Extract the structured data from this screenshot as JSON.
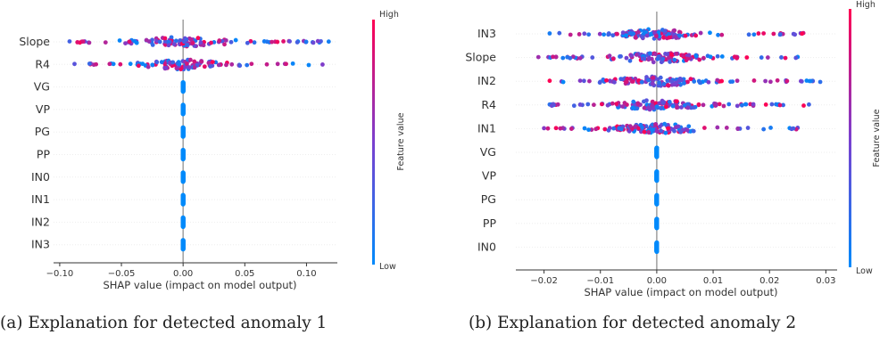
{
  "chart_data": [
    {
      "type": "scatter",
      "subtype": "shap-beeswarm",
      "caption": "(a) Explanation for detected anomaly 1",
      "xlabel": "SHAP value (impact on model output)",
      "xlim": [
        -0.105,
        0.125
      ],
      "xticks": [
        -0.1,
        -0.05,
        0.0,
        0.05,
        0.1
      ],
      "xtick_labels": [
        "−0.10",
        "−0.05",
        "0.00",
        "0.05",
        "0.10"
      ],
      "colorbar": {
        "label": "Feature value",
        "high": "High",
        "low": "Low"
      },
      "features": [
        {
          "name": "Slope",
          "min": -0.092,
          "max": 0.118,
          "center": 0.0,
          "spread": 0.03,
          "count": 120,
          "seed": 11
        },
        {
          "name": "R4",
          "min": -0.088,
          "max": 0.113,
          "center": 0.0,
          "spread": 0.026,
          "count": 110,
          "seed": 23
        },
        {
          "name": "VG",
          "min": 0,
          "max": 0,
          "center": 0,
          "spread": 0,
          "count": 40,
          "seed": 3
        },
        {
          "name": "VP",
          "min": 0,
          "max": 0,
          "center": 0,
          "spread": 0,
          "count": 40,
          "seed": 4
        },
        {
          "name": "PG",
          "min": 0,
          "max": 0,
          "center": 0,
          "spread": 0,
          "count": 40,
          "seed": 5
        },
        {
          "name": "PP",
          "min": 0,
          "max": 0,
          "center": 0,
          "spread": 0,
          "count": 40,
          "seed": 6
        },
        {
          "name": "IN0",
          "min": 0,
          "max": 0,
          "center": 0,
          "spread": 0,
          "count": 40,
          "seed": 7
        },
        {
          "name": "IN1",
          "min": 0,
          "max": 0,
          "center": 0,
          "spread": 0,
          "count": 40,
          "seed": 8
        },
        {
          "name": "IN2",
          "min": 0,
          "max": 0,
          "center": 0,
          "spread": 0,
          "count": 40,
          "seed": 9
        },
        {
          "name": "IN3",
          "min": 0,
          "max": 0,
          "center": 0,
          "spread": 0,
          "count": 40,
          "seed": 10
        }
      ]
    },
    {
      "type": "scatter",
      "subtype": "shap-beeswarm",
      "caption": "(b) Explanation for detected anomaly 2",
      "xlabel": "SHAP value (impact on model output)",
      "xlim": [
        -0.025,
        0.032
      ],
      "xticks": [
        -0.02,
        -0.01,
        0.0,
        0.01,
        0.02,
        0.03
      ],
      "xtick_labels": [
        "−0.02",
        "−0.01",
        "0.00",
        "0.01",
        "0.02",
        "0.03"
      ],
      "colorbar": {
        "label": "Feature value",
        "high": "High",
        "low": "Low"
      },
      "features": [
        {
          "name": "IN3",
          "min": -0.019,
          "max": 0.026,
          "center": 0.0,
          "spread": 0.006,
          "count": 130,
          "seed": 31
        },
        {
          "name": "Slope",
          "min": -0.021,
          "max": 0.025,
          "center": 0.0,
          "spread": 0.006,
          "count": 130,
          "seed": 37
        },
        {
          "name": "IN2",
          "min": -0.019,
          "max": 0.029,
          "center": 0.0,
          "spread": 0.006,
          "count": 130,
          "seed": 41
        },
        {
          "name": "R4",
          "min": -0.019,
          "max": 0.027,
          "center": 0.0,
          "spread": 0.006,
          "count": 130,
          "seed": 43
        },
        {
          "name": "IN1",
          "min": -0.02,
          "max": 0.025,
          "center": 0.0,
          "spread": 0.006,
          "count": 130,
          "seed": 47
        },
        {
          "name": "VG",
          "min": 0,
          "max": 0,
          "center": 0,
          "spread": 0,
          "count": 40,
          "seed": 13
        },
        {
          "name": "VP",
          "min": 0,
          "max": 0,
          "center": 0,
          "spread": 0,
          "count": 40,
          "seed": 14
        },
        {
          "name": "PG",
          "min": 0,
          "max": 0,
          "center": 0,
          "spread": 0,
          "count": 40,
          "seed": 15
        },
        {
          "name": "PP",
          "min": 0,
          "max": 0,
          "center": 0,
          "spread": 0,
          "count": 40,
          "seed": 16
        },
        {
          "name": "IN0",
          "min": 0,
          "max": 0,
          "center": 0,
          "spread": 0,
          "count": 40,
          "seed": 17
        }
      ]
    }
  ],
  "colors": {
    "low": "#008afb",
    "high": "#ff0052",
    "zero_line": "#999999",
    "axis": "#333333"
  }
}
